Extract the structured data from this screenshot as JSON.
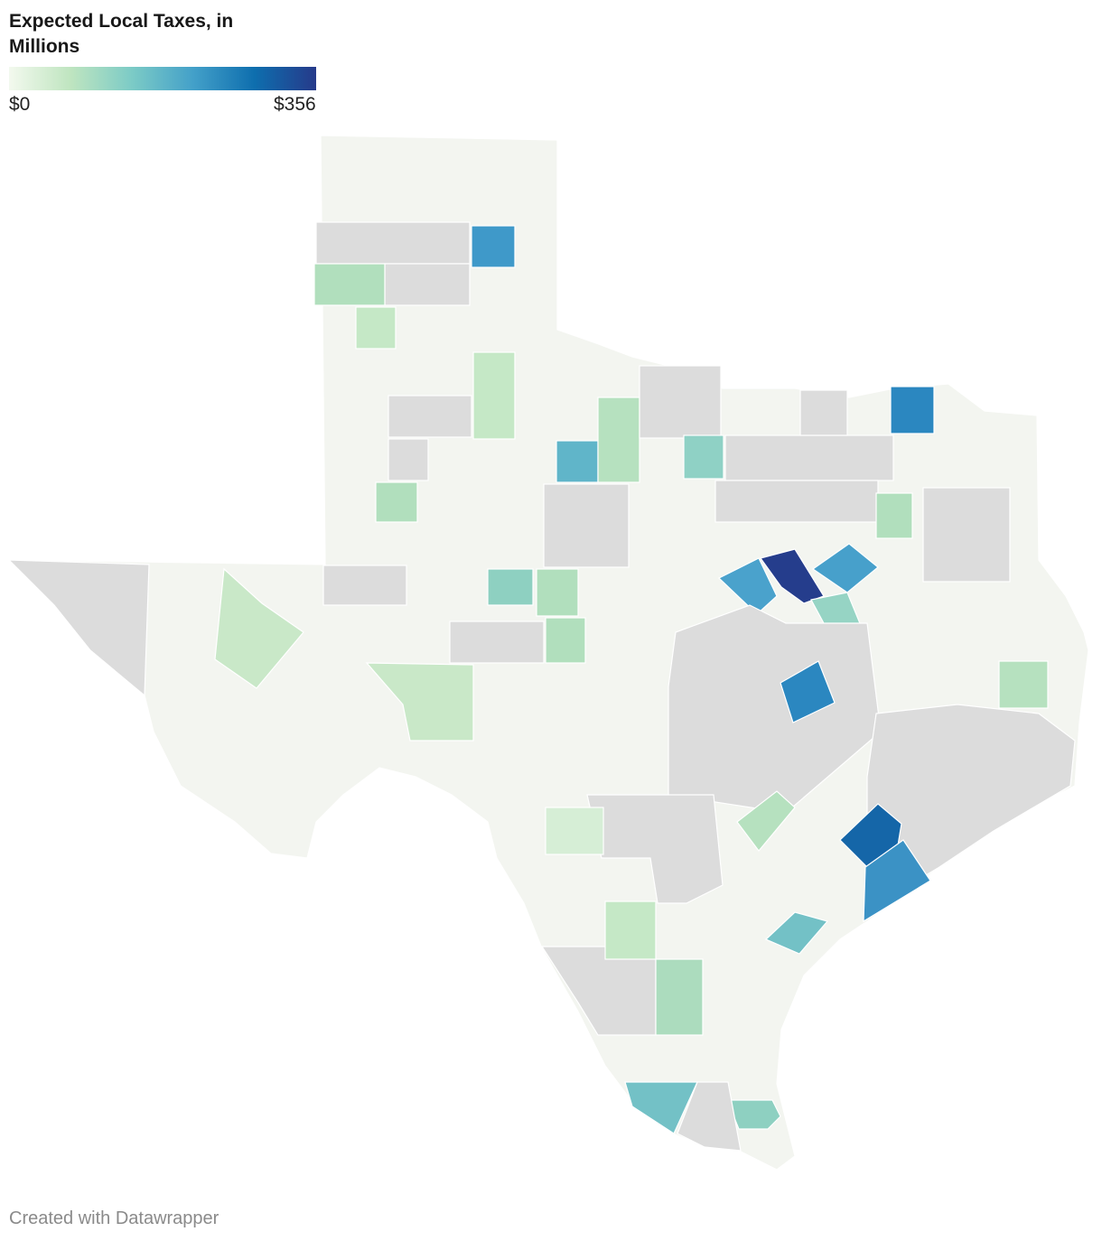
{
  "title": "Expected Local Taxes, in Millions",
  "legend": {
    "min": {
      "value": 0,
      "label": "$0"
    },
    "max": {
      "value": 356,
      "label": "$356"
    }
  },
  "footer": "Created with Datawrapper"
}
